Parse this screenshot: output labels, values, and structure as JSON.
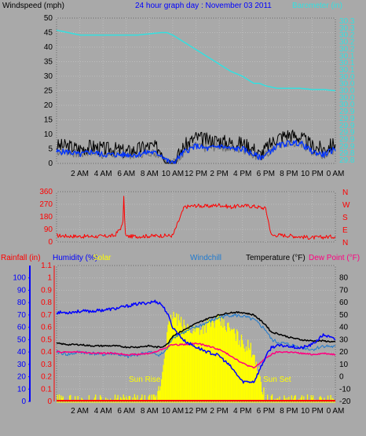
{
  "top": {
    "left_title": "Windspeed (mph)",
    "center_title": "24 hour graph day : November 03 2011",
    "right_title": "Barometer (in)"
  },
  "colors": {
    "background": "#a9a9a9",
    "grid": "#bdbdbd",
    "barometer": "#33e0e0",
    "wind_gust": "#000000",
    "wind_avg": "#0033ff",
    "wind_avg_shadow": "#707070",
    "direction": "#ff0000",
    "humidity": "#0000ff",
    "solar": "#ffff00",
    "windchill": "#1e7ad0",
    "temperature": "#000000",
    "dew_point": "#ff0080",
    "rain": "#ff0000",
    "rain_axis": "#ff0000",
    "humidity_axis": "#0000ff"
  },
  "time_ticks": [
    "2 AM",
    "4 AM",
    "6 AM",
    "8 AM",
    "10 AM",
    "12 PM",
    "2 PM",
    "4 PM",
    "6 PM",
    "8 PM",
    "10 PM",
    "0 AM"
  ],
  "chart_data": [
    {
      "type": "line",
      "id": "wind",
      "title": "Windspeed (mph)",
      "ylim": [
        0,
        50
      ],
      "yticks": [
        0,
        5,
        10,
        15,
        20,
        25,
        30,
        35,
        40,
        45,
        50
      ],
      "secondary_ylabel": "Barometer (in)",
      "secondary_ylim": [
        29.75,
        30.35
      ],
      "secondary_yticks": [
        "29.8",
        "29.8",
        "29.9",
        "29.9",
        "29.9",
        "29.9",
        "29.9",
        "29.9",
        "30.0",
        "30.0",
        "30.0",
        "30.0",
        "30.0",
        "30.1",
        "30.1",
        "30.1",
        "30.2",
        "30.2",
        "30.2",
        "30.3",
        "30.3"
      ],
      "x_hours": [
        0,
        1,
        2,
        3,
        4,
        5,
        6,
        7,
        8,
        9,
        9.5,
        10,
        11,
        12,
        13,
        14,
        15,
        16,
        17,
        17.5,
        18,
        19,
        20,
        21,
        22,
        23,
        24
      ],
      "series": [
        {
          "name": "Barometer",
          "axis": "secondary",
          "values": [
            30.3,
            30.29,
            30.28,
            30.28,
            30.28,
            30.28,
            30.28,
            30.28,
            30.285,
            30.29,
            30.29,
            30.28,
            30.25,
            30.22,
            30.19,
            30.16,
            30.13,
            30.11,
            30.08,
            30.08,
            30.07,
            30.06,
            30.06,
            30.06,
            30.055,
            30.055,
            30.05
          ]
        },
        {
          "name": "Gust",
          "values": [
            6,
            6,
            5,
            6,
            5,
            5,
            4,
            5,
            6,
            5,
            1,
            0,
            6,
            9,
            8,
            8,
            7,
            7,
            5,
            3,
            5,
            9,
            10,
            9,
            6,
            5,
            7
          ]
        },
        {
          "name": "Average",
          "values": [
            4,
            4,
            3,
            4,
            3,
            3,
            3,
            3,
            4,
            3,
            1,
            0,
            4,
            6,
            5,
            6,
            5,
            5,
            3,
            2,
            3,
            6,
            7,
            7,
            4,
            3,
            5
          ]
        }
      ]
    },
    {
      "type": "line",
      "id": "direction",
      "ylim": [
        0,
        360
      ],
      "yticks": [
        0,
        90,
        180,
        270,
        360
      ],
      "secondary_labels": [
        "N",
        "W",
        "S",
        "E",
        "N"
      ],
      "x_hours": [
        0,
        2,
        4,
        5,
        5.7,
        5.8,
        5.9,
        6,
        7,
        9,
        10,
        11,
        12,
        13,
        14,
        15,
        16,
        17,
        18,
        18.5,
        19,
        20,
        22,
        24
      ],
      "series": [
        {
          "name": "Wind Direction",
          "values": [
            45,
            40,
            40,
            45,
            120,
            340,
            60,
            40,
            40,
            45,
            45,
            250,
            260,
            255,
            265,
            250,
            260,
            255,
            240,
            45,
            50,
            45,
            30,
            40
          ]
        }
      ]
    },
    {
      "type": "line",
      "id": "temperature",
      "left_axes": [
        {
          "label": "Rainfall (in)",
          "ylim": [
            0,
            1.1
          ],
          "yticks": [
            "0",
            "0.1",
            "0.2",
            "0.3",
            "0.4",
            "0.5",
            "0.6",
            "0.7",
            "0.8",
            "0.9",
            "1",
            "1.1"
          ]
        },
        {
          "label": "Humidity (%)",
          "ylim": [
            0,
            100
          ],
          "yticks": [
            "0",
            "10",
            "20",
            "30",
            "40",
            "50",
            "60",
            "70",
            "80",
            "90",
            "100"
          ]
        }
      ],
      "legend": [
        "Rainfall (in)",
        "Humidity (%)",
        "Solar",
        "Windchill",
        "Temperature (°F)",
        "Dew Point (°F)"
      ],
      "ylim": [
        -20,
        90
      ],
      "yticks": [
        -20,
        -10,
        0,
        10,
        20,
        30,
        40,
        50,
        60,
        70,
        80
      ],
      "annotations": [
        "Sun Rise",
        "Sun Set"
      ],
      "x_hours": [
        0,
        1,
        2,
        3,
        4,
        5,
        6,
        7,
        8,
        8.5,
        9,
        9.5,
        10,
        11,
        12,
        13,
        14,
        15,
        16,
        17,
        18,
        18.5,
        19,
        20,
        21,
        22,
        23,
        24
      ],
      "series": [
        {
          "name": "Temperature (°F)",
          "values": [
            27,
            26,
            26,
            25,
            25,
            25,
            24,
            24,
            25,
            24,
            24,
            26,
            33,
            38,
            43,
            47,
            50,
            52,
            52,
            50,
            42,
            36,
            35,
            32,
            30,
            29,
            29,
            28
          ]
        },
        {
          "name": "Windchill",
          "values": [
            20,
            18,
            20,
            19,
            18,
            19,
            16,
            18,
            20,
            18,
            18,
            22,
            32,
            36,
            40,
            44,
            48,
            50,
            49,
            46,
            38,
            30,
            28,
            26,
            24,
            22,
            25,
            24
          ]
        },
        {
          "name": "Dew Point (°F)",
          "values": [
            20,
            20,
            20,
            19,
            19,
            19,
            18,
            18,
            19,
            20,
            22,
            24,
            26,
            26,
            27,
            25,
            22,
            17,
            11,
            7,
            15,
            18,
            20,
            20,
            19,
            18,
            19,
            18
          ]
        },
        {
          "name": "Humidity (%)",
          "values": [
            72,
            72,
            73,
            73,
            74,
            75,
            77,
            79,
            80,
            81,
            79,
            72,
            60,
            49,
            44,
            40,
            37,
            28,
            16,
            16,
            36,
            44,
            45,
            45,
            43,
            46,
            54,
            50
          ]
        },
        {
          "name": "Solar",
          "values": [
            0,
            0,
            0,
            0,
            0,
            0,
            0,
            0,
            0,
            0,
            15,
            55,
            70,
            60,
            58,
            62,
            65,
            58,
            48,
            40,
            0,
            0,
            0,
            0,
            0,
            0,
            0,
            0
          ]
        },
        {
          "name": "Rainfall (in)",
          "values": [
            0,
            0,
            0,
            0,
            0,
            0,
            0,
            0,
            0,
            0,
            0,
            0,
            0,
            0,
            0,
            0,
            0,
            0,
            0,
            0,
            0,
            0,
            0,
            0,
            0,
            0,
            0,
            0
          ]
        }
      ]
    }
  ]
}
